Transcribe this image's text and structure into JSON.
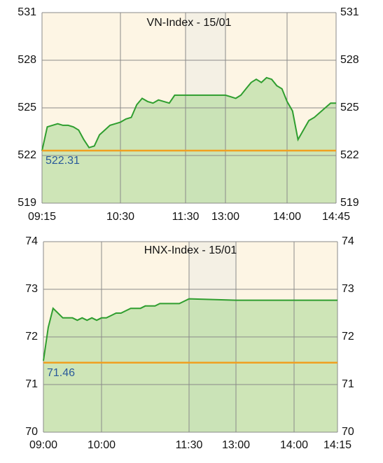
{
  "chart_data": [
    {
      "type": "line",
      "title": "VN-Index - 15/01",
      "x": [
        555,
        560,
        565,
        570,
        575,
        580,
        585,
        590,
        595,
        600,
        605,
        610,
        615,
        620,
        625,
        630,
        635,
        640,
        645,
        650,
        655,
        660,
        665,
        670,
        675,
        680,
        685,
        690,
        780,
        785,
        790,
        795,
        800,
        805,
        810,
        815,
        820,
        825,
        830,
        835,
        840,
        845,
        850,
        855,
        860,
        865,
        870,
        875,
        880,
        885
      ],
      "series": [
        {
          "color": "#2f9e2f",
          "values": [
            522.3,
            523.8,
            523.9,
            524.0,
            523.9,
            523.9,
            523.8,
            523.6,
            523.0,
            522.5,
            522.6,
            523.3,
            523.6,
            523.9,
            524.0,
            524.1,
            524.3,
            524.4,
            525.2,
            525.6,
            525.4,
            525.3,
            525.5,
            525.4,
            525.3,
            525.8,
            525.8,
            525.8,
            525.8,
            525.7,
            525.6,
            525.8,
            526.2,
            526.6,
            526.8,
            526.6,
            526.9,
            526.8,
            526.4,
            526.2,
            525.4,
            524.8,
            523.0,
            523.6,
            524.2,
            524.4,
            524.7,
            525.0,
            525.3,
            525.3
          ]
        }
      ],
      "reference": {
        "value": 522.31,
        "color": "#f0a020"
      },
      "shaded_xrange": [
        690,
        780
      ],
      "xlim": [
        555,
        885
      ],
      "xticks": [
        {
          "value": 555,
          "label": "09:15"
        },
        {
          "value": 630,
          "label": "10:30"
        },
        {
          "value": 690,
          "label": "11:30"
        },
        {
          "value": 780,
          "label": "13:00"
        },
        {
          "value": 840,
          "label": "14:00"
        },
        {
          "value": 885,
          "label": "14:45"
        }
      ],
      "ylim": [
        519,
        531
      ],
      "yticks": [
        519,
        522,
        525,
        528,
        531
      ],
      "grid": true
    },
    {
      "type": "line",
      "title": "HNX-Index - 15/01",
      "x": [
        540,
        545,
        550,
        555,
        560,
        565,
        570,
        575,
        580,
        585,
        590,
        595,
        600,
        605,
        610,
        615,
        620,
        625,
        630,
        635,
        640,
        645,
        650,
        655,
        660,
        665,
        670,
        675,
        680,
        685,
        690,
        780,
        855
      ],
      "series": [
        {
          "color": "#2f9e2f",
          "values": [
            71.5,
            72.2,
            72.6,
            72.5,
            72.4,
            72.4,
            72.4,
            72.35,
            72.4,
            72.35,
            72.4,
            72.35,
            72.4,
            72.4,
            72.45,
            72.5,
            72.5,
            72.55,
            72.6,
            72.6,
            72.6,
            72.65,
            72.65,
            72.65,
            72.7,
            72.7,
            72.7,
            72.7,
            72.7,
            72.75,
            72.8,
            72.77,
            72.77
          ]
        }
      ],
      "reference": {
        "value": 71.46,
        "color": "#f0a020"
      },
      "shaded_xrange": [
        690,
        780
      ],
      "xlim": [
        540,
        855
      ],
      "xticks": [
        {
          "value": 540,
          "label": "09:00"
        },
        {
          "value": 600,
          "label": "10:00"
        },
        {
          "value": 690,
          "label": "11:30"
        },
        {
          "value": 780,
          "label": "13:00"
        },
        {
          "value": 840,
          "label": "14:00"
        },
        {
          "value": 855,
          "label": "14:15"
        }
      ],
      "ylim": [
        70,
        74
      ],
      "yticks": [
        70,
        71,
        72,
        73,
        74
      ],
      "grid": true
    }
  ]
}
